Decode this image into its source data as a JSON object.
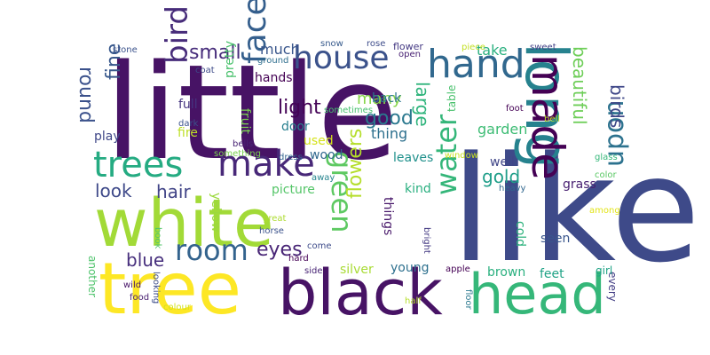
{
  "words": [
    {
      "text": "little",
      "color": "#471365"
    },
    {
      "text": "like",
      "color": "#3e4a89"
    },
    {
      "text": "white",
      "color": "#a2da37"
    },
    {
      "text": "tree",
      "color": "#fde725"
    },
    {
      "text": "black",
      "color": "#471365"
    },
    {
      "text": "head",
      "color": "#35b779"
    },
    {
      "text": "long",
      "color": "#26828e"
    },
    {
      "text": "made",
      "color": "#440154"
    },
    {
      "text": "hand",
      "color": "#31688e"
    },
    {
      "text": "trees",
      "color": "#25ab82"
    },
    {
      "text": "make",
      "color": "#482878"
    },
    {
      "text": "house",
      "color": "#3b528b"
    },
    {
      "text": "face",
      "color": "#355f8d"
    },
    {
      "text": "bird",
      "color": "#472c7a"
    },
    {
      "text": "room",
      "color": "#33638d"
    },
    {
      "text": "water",
      "color": "#34b679"
    },
    {
      "text": "green",
      "color": "#5ec962"
    },
    {
      "text": "upon",
      "color": "#2c728e"
    },
    {
      "text": "small",
      "color": "#472d7b"
    },
    {
      "text": "round",
      "color": "#3b518b"
    },
    {
      "text": "fine",
      "color": "#38588c"
    },
    {
      "text": "good",
      "color": "#2a788e"
    },
    {
      "text": "light",
      "color": "#440256"
    },
    {
      "text": "eyes",
      "color": "#482576"
    },
    {
      "text": "blue",
      "color": "#472f7d"
    },
    {
      "text": "hair",
      "color": "#414487"
    },
    {
      "text": "look",
      "color": "#3e4989"
    },
    {
      "text": "flowers",
      "color": "#b5de2b"
    },
    {
      "text": "beautiful",
      "color": "#6ece58"
    },
    {
      "text": "birds",
      "color": "#3f4788"
    },
    {
      "text": "large",
      "color": "#2fb47c"
    },
    {
      "text": "gold",
      "color": "#1f9e89"
    },
    {
      "text": "many",
      "color": "#86d549"
    },
    {
      "text": "much",
      "color": "#39568c"
    },
    {
      "text": "back",
      "color": "#2a768e"
    },
    {
      "text": "take",
      "color": "#2ab07f"
    },
    {
      "text": "thing",
      "color": "#2d708e"
    },
    {
      "text": "garden",
      "color": "#3dbc74"
    },
    {
      "text": "hands",
      "color": "#440154"
    },
    {
      "text": "fruit",
      "color": "#7ad151"
    },
    {
      "text": "door",
      "color": "#277f8e"
    },
    {
      "text": "used",
      "color": "#d5e21a"
    },
    {
      "text": "wood",
      "color": "#31688e"
    },
    {
      "text": "leaves",
      "color": "#21918c"
    },
    {
      "text": "well",
      "color": "#404688"
    },
    {
      "text": "fire",
      "color": "#bddf26"
    },
    {
      "text": "play",
      "color": "#3f4788"
    },
    {
      "text": "full",
      "color": "#45347f"
    },
    {
      "text": "pretty",
      "color": "#4ac16d"
    },
    {
      "text": "picture",
      "color": "#54c568"
    },
    {
      "text": "kind",
      "color": "#29af7f"
    },
    {
      "text": "grass",
      "color": "#482071"
    },
    {
      "text": "things",
      "color": "#48186a"
    },
    {
      "text": "yellow",
      "color": "#9bd93c"
    },
    {
      "text": "cold",
      "color": "#2db27d"
    },
    {
      "text": "seen",
      "color": "#39558c"
    },
    {
      "text": "young",
      "color": "#2d708e"
    },
    {
      "text": "silver",
      "color": "#a8db34"
    },
    {
      "text": "brown",
      "color": "#2ab07f"
    },
    {
      "text": "feet",
      "color": "#20a386"
    },
    {
      "text": "another",
      "color": "#4ec36b"
    },
    {
      "text": "every",
      "color": "#433e85"
    },
    {
      "text": "girl",
      "color": "#20a386"
    },
    {
      "text": "stone",
      "color": "#3b528b"
    },
    {
      "text": "coat",
      "color": "#3e4a89"
    },
    {
      "text": "ground",
      "color": "#2e6e8e"
    },
    {
      "text": "snow",
      "color": "#375a8c"
    },
    {
      "text": "rose",
      "color": "#3e4c8a"
    },
    {
      "text": "flower",
      "color": "#443983"
    },
    {
      "text": "open",
      "color": "#482173"
    },
    {
      "text": "piece",
      "color": "#c2df23"
    },
    {
      "text": "sweet",
      "color": "#424086"
    },
    {
      "text": "sometimes",
      "color": "#46c06f"
    },
    {
      "text": "foot",
      "color": "#440154"
    },
    {
      "text": "bell",
      "color": "#b8de29"
    },
    {
      "text": "table",
      "color": "#4ac16d"
    },
    {
      "text": "dark",
      "color": "#3b528b"
    },
    {
      "text": "bells",
      "color": "#482475"
    },
    {
      "text": "something",
      "color": "#7ad151"
    },
    {
      "text": "dress",
      "color": "#32648e"
    },
    {
      "text": "window",
      "color": "#c8e020"
    },
    {
      "text": "glass",
      "color": "#35b779"
    },
    {
      "text": "color",
      "color": "#5ac864"
    },
    {
      "text": "heavy",
      "color": "#31678e"
    },
    {
      "text": "away",
      "color": "#25848e"
    },
    {
      "text": "among",
      "color": "#e2e418"
    },
    {
      "text": "great",
      "color": "#addc30"
    },
    {
      "text": "horse",
      "color": "#3b528b"
    },
    {
      "text": "book",
      "color": "#52c569"
    },
    {
      "text": "come",
      "color": "#3e4c8a"
    },
    {
      "text": "hard",
      "color": "#440154"
    },
    {
      "text": "bright",
      "color": "#443a83"
    },
    {
      "text": "side",
      "color": "#482475"
    },
    {
      "text": "apple",
      "color": "#440154"
    },
    {
      "text": "wild",
      "color": "#481668"
    },
    {
      "text": "food",
      "color": "#481f70"
    },
    {
      "text": "looking",
      "color": "#3d4d8a"
    },
    {
      "text": "colour",
      "color": "#d2e21b"
    },
    {
      "text": "half",
      "color": "#b5de2b"
    },
    {
      "text": "floor",
      "color": "#2a788e"
    }
  ]
}
